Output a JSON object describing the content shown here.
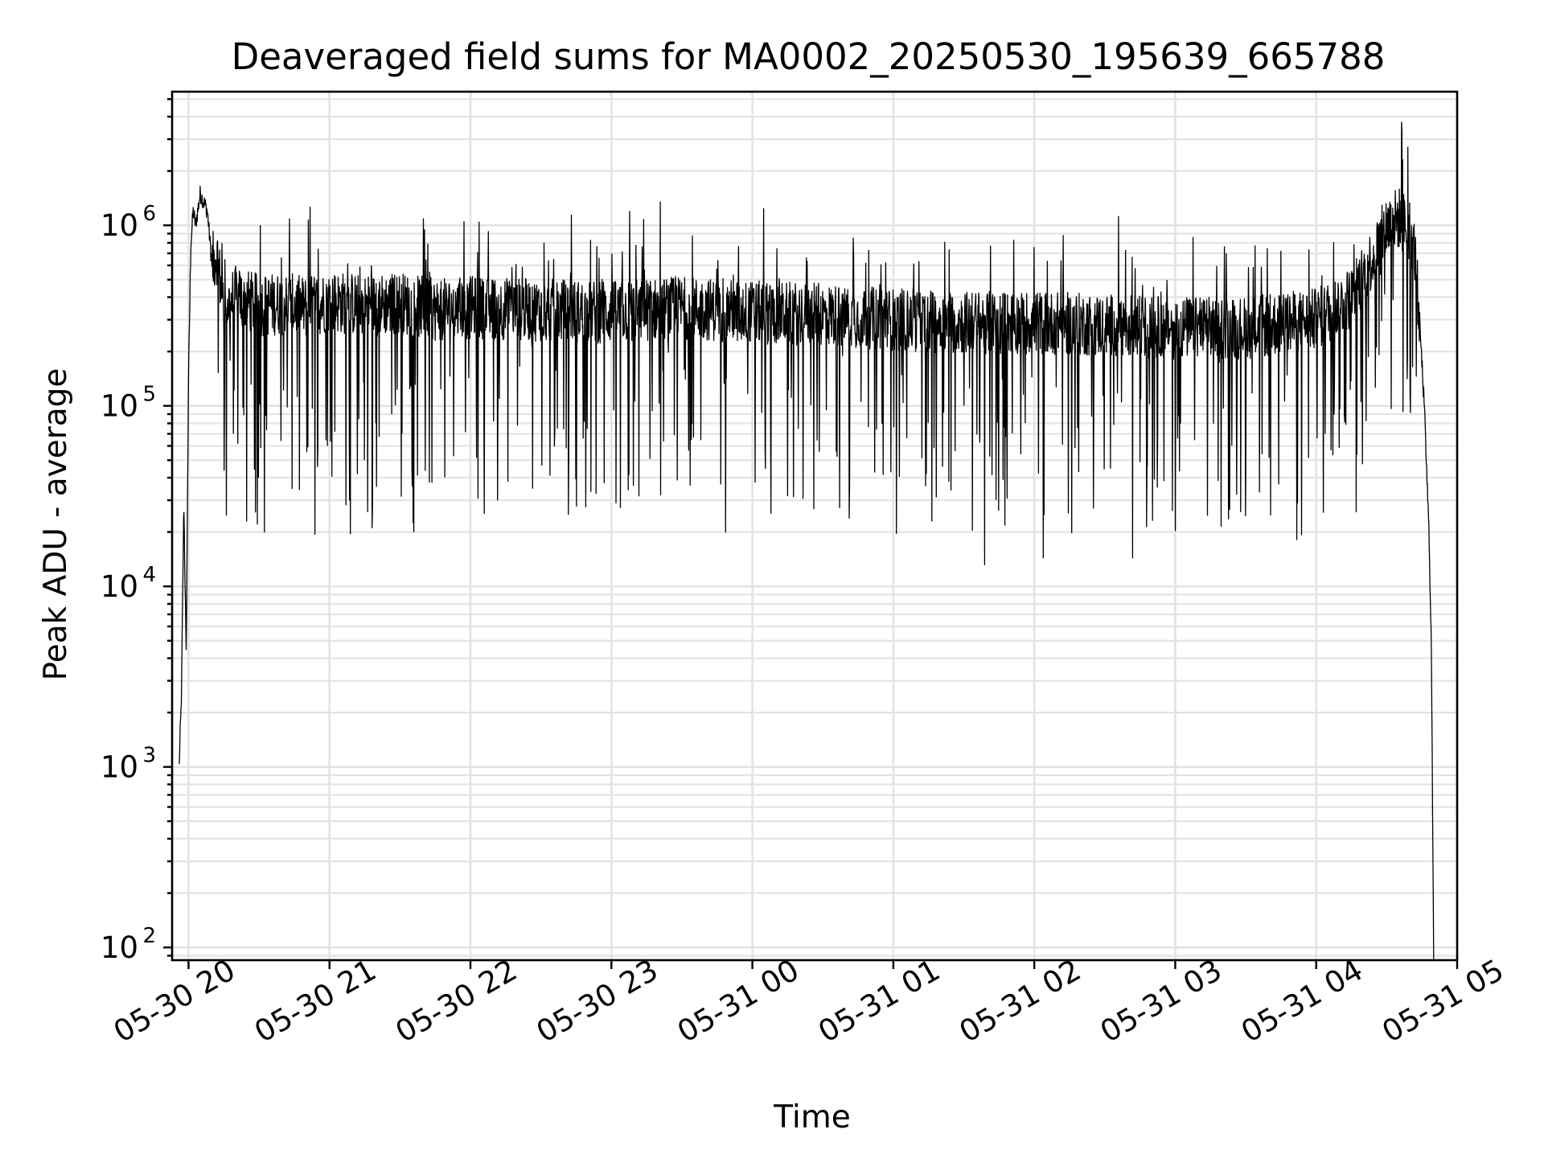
{
  "chart_data": {
    "type": "line",
    "title": "Deaveraged field sums for MA0002_20250530_195639_665788",
    "xlabel": "Time",
    "ylabel": "Peak ADU - average",
    "yscale": "log",
    "xlim": [
      "2025-05-30T19:53",
      "2025-05-31T05:00"
    ],
    "ylim": [
      85,
      5500000
    ],
    "grid": true,
    "x_ticks": [
      "05-30 20",
      "05-30 21",
      "05-30 22",
      "05-30 23",
      "05-31 00",
      "05-31 01",
      "05-31 02",
      "05-31 03",
      "05-31 04",
      "05-31 05"
    ],
    "y_ticks": [
      {
        "base": "10",
        "exp": "2",
        "value": 100
      },
      {
        "base": "10",
        "exp": "3",
        "value": 1000
      },
      {
        "base": "10",
        "exp": "4",
        "value": 10000
      },
      {
        "base": "10",
        "exp": "5",
        "value": 100000
      },
      {
        "base": "10",
        "exp": "6",
        "value": 1000000
      }
    ],
    "series_color": "#000000",
    "series": [
      {
        "name": "",
        "x": [
          "2025-05-30T19:56",
          "2025-05-30T19:57",
          "2025-05-30T19:58",
          "2025-05-30T19:59",
          "2025-05-30T20:00",
          "2025-05-30T20:01",
          "2025-05-30T20:02",
          "2025-05-30T20:03",
          "2025-05-30T20:05",
          "2025-05-30T20:08",
          "2025-05-30T20:10",
          "2025-05-30T20:12",
          "2025-05-30T20:15",
          "2025-05-30T20:20",
          "2025-05-30T20:25",
          "2025-05-30T20:30",
          "2025-05-30T20:40",
          "2025-05-30T20:50",
          "2025-05-30T21:00",
          "2025-05-30T21:15",
          "2025-05-30T21:30",
          "2025-05-30T21:45",
          "2025-05-30T22:00",
          "2025-05-30T22:30",
          "2025-05-30T23:00",
          "2025-05-30T23:30",
          "2025-05-31T00:00",
          "2025-05-31T00:30",
          "2025-05-31T01:00",
          "2025-05-31T01:30",
          "2025-05-31T02:00",
          "2025-05-31T02:30",
          "2025-05-31T03:00",
          "2025-05-31T03:30",
          "2025-05-31T04:00",
          "2025-05-31T04:15",
          "2025-05-31T04:25",
          "2025-05-31T04:30",
          "2025-05-31T04:35",
          "2025-05-31T04:40",
          "2025-05-31T04:42",
          "2025-05-31T04:44",
          "2025-05-31T04:46",
          "2025-05-31T04:48",
          "2025-05-31T04:49",
          "2025-05-31T04:50"
        ],
        "y": [
          1000,
          2500,
          30000,
          4000,
          150000,
          800000,
          1200000,
          1000000,
          1500000,
          1200000,
          600000,
          700000,
          350000,
          400000,
          380000,
          360000,
          370000,
          350000,
          380000,
          360000,
          370000,
          340000,
          350000,
          340000,
          330000,
          350000,
          330000,
          320000,
          300000,
          290000,
          290000,
          280000,
          270000,
          270000,
          300000,
          400000,
          700000,
          1000000,
          1100000,
          950000,
          700000,
          300000,
          100000,
          20000,
          5000,
          90
        ]
      }
    ]
  }
}
